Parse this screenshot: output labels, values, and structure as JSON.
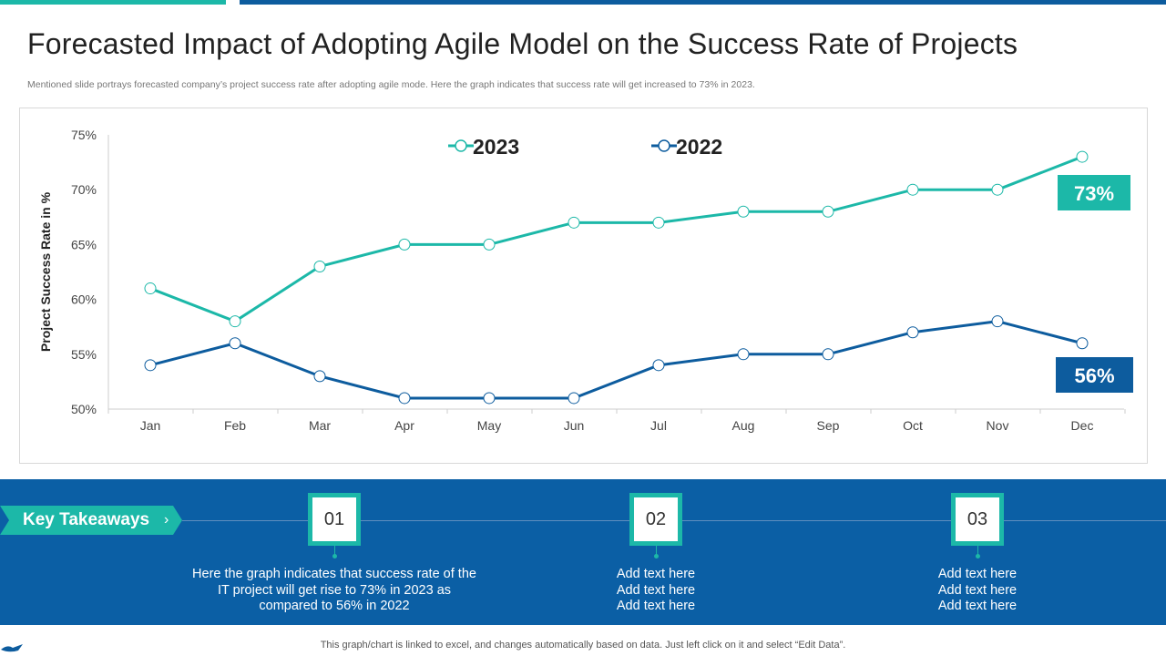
{
  "title": "Forecasted Impact of Adopting Agile Model on the Success Rate of Projects",
  "subtitle": "Mentioned slide portrays forecasted company’s project success rate after adopting agile mode. Here the graph indicates that success rate will get increased to 73% in 2023.",
  "chart_data": {
    "type": "line",
    "categories": [
      "Jan",
      "Feb",
      "Mar",
      "Apr",
      "May",
      "Jun",
      "Jul",
      "Aug",
      "Sep",
      "Oct",
      "Nov",
      "Dec"
    ],
    "ylabel": "Project Success Rate in %",
    "ylim": [
      50,
      75
    ],
    "yticks": [
      "50%",
      "55%",
      "60%",
      "65%",
      "70%",
      "75%"
    ],
    "grid": false,
    "legend_placement": "top-center",
    "series": [
      {
        "name": "2023",
        "color": "#1cb8a8",
        "values": [
          61,
          58,
          63,
          65,
          65,
          67,
          67,
          68,
          68,
          70,
          70,
          73
        ],
        "end_label": "73%"
      },
      {
        "name": "2022",
        "color": "#0d5c9e",
        "values": [
          54,
          56,
          53,
          51,
          51,
          51,
          54,
          55,
          55,
          57,
          58,
          56
        ],
        "end_label": "56%"
      }
    ]
  },
  "takeaways": {
    "heading": "Key Takeaways",
    "items": [
      {
        "num": "01",
        "lines": [
          "Here the graph indicates that success rate of the",
          "IT project will get rise to 73% in 2023 as",
          "compared to 56% in 2022"
        ]
      },
      {
        "num": "02",
        "lines": [
          "Add text here",
          "Add text here",
          "Add text here"
        ]
      },
      {
        "num": "03",
        "lines": [
          "Add text here",
          "Add text here",
          "Add text here"
        ]
      }
    ]
  },
  "footer": "This graph/chart is linked to excel,  and changes automatically based on data. Just left click on it and select “Edit Data”."
}
